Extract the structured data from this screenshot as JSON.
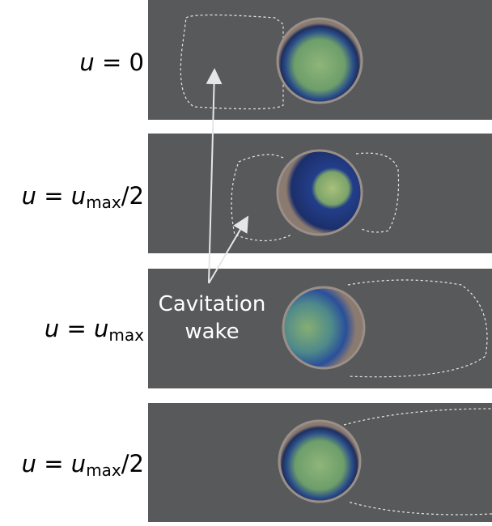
{
  "panels": [
    {
      "label": [
        {
          "text": "u",
          "italic": true
        },
        {
          "text": " = 0"
        }
      ]
    },
    {
      "label": [
        {
          "text": "u",
          "italic": true
        },
        {
          "text": " = "
        },
        {
          "text": "u",
          "italic": true
        },
        {
          "text": "max",
          "sub": true
        },
        {
          "text": "/2"
        }
      ]
    },
    {
      "label": [
        {
          "text": "u",
          "italic": true
        },
        {
          "text": " = "
        },
        {
          "text": "u",
          "italic": true
        },
        {
          "text": "max",
          "sub": true
        }
      ]
    },
    {
      "label": [
        {
          "text": "u",
          "italic": true
        },
        {
          "text": " = "
        },
        {
          "text": "u",
          "italic": true
        },
        {
          "text": "max",
          "sub": true
        },
        {
          "text": "/2"
        }
      ]
    }
  ],
  "annotation": {
    "lines": [
      "Cavitation",
      "wake"
    ]
  }
}
